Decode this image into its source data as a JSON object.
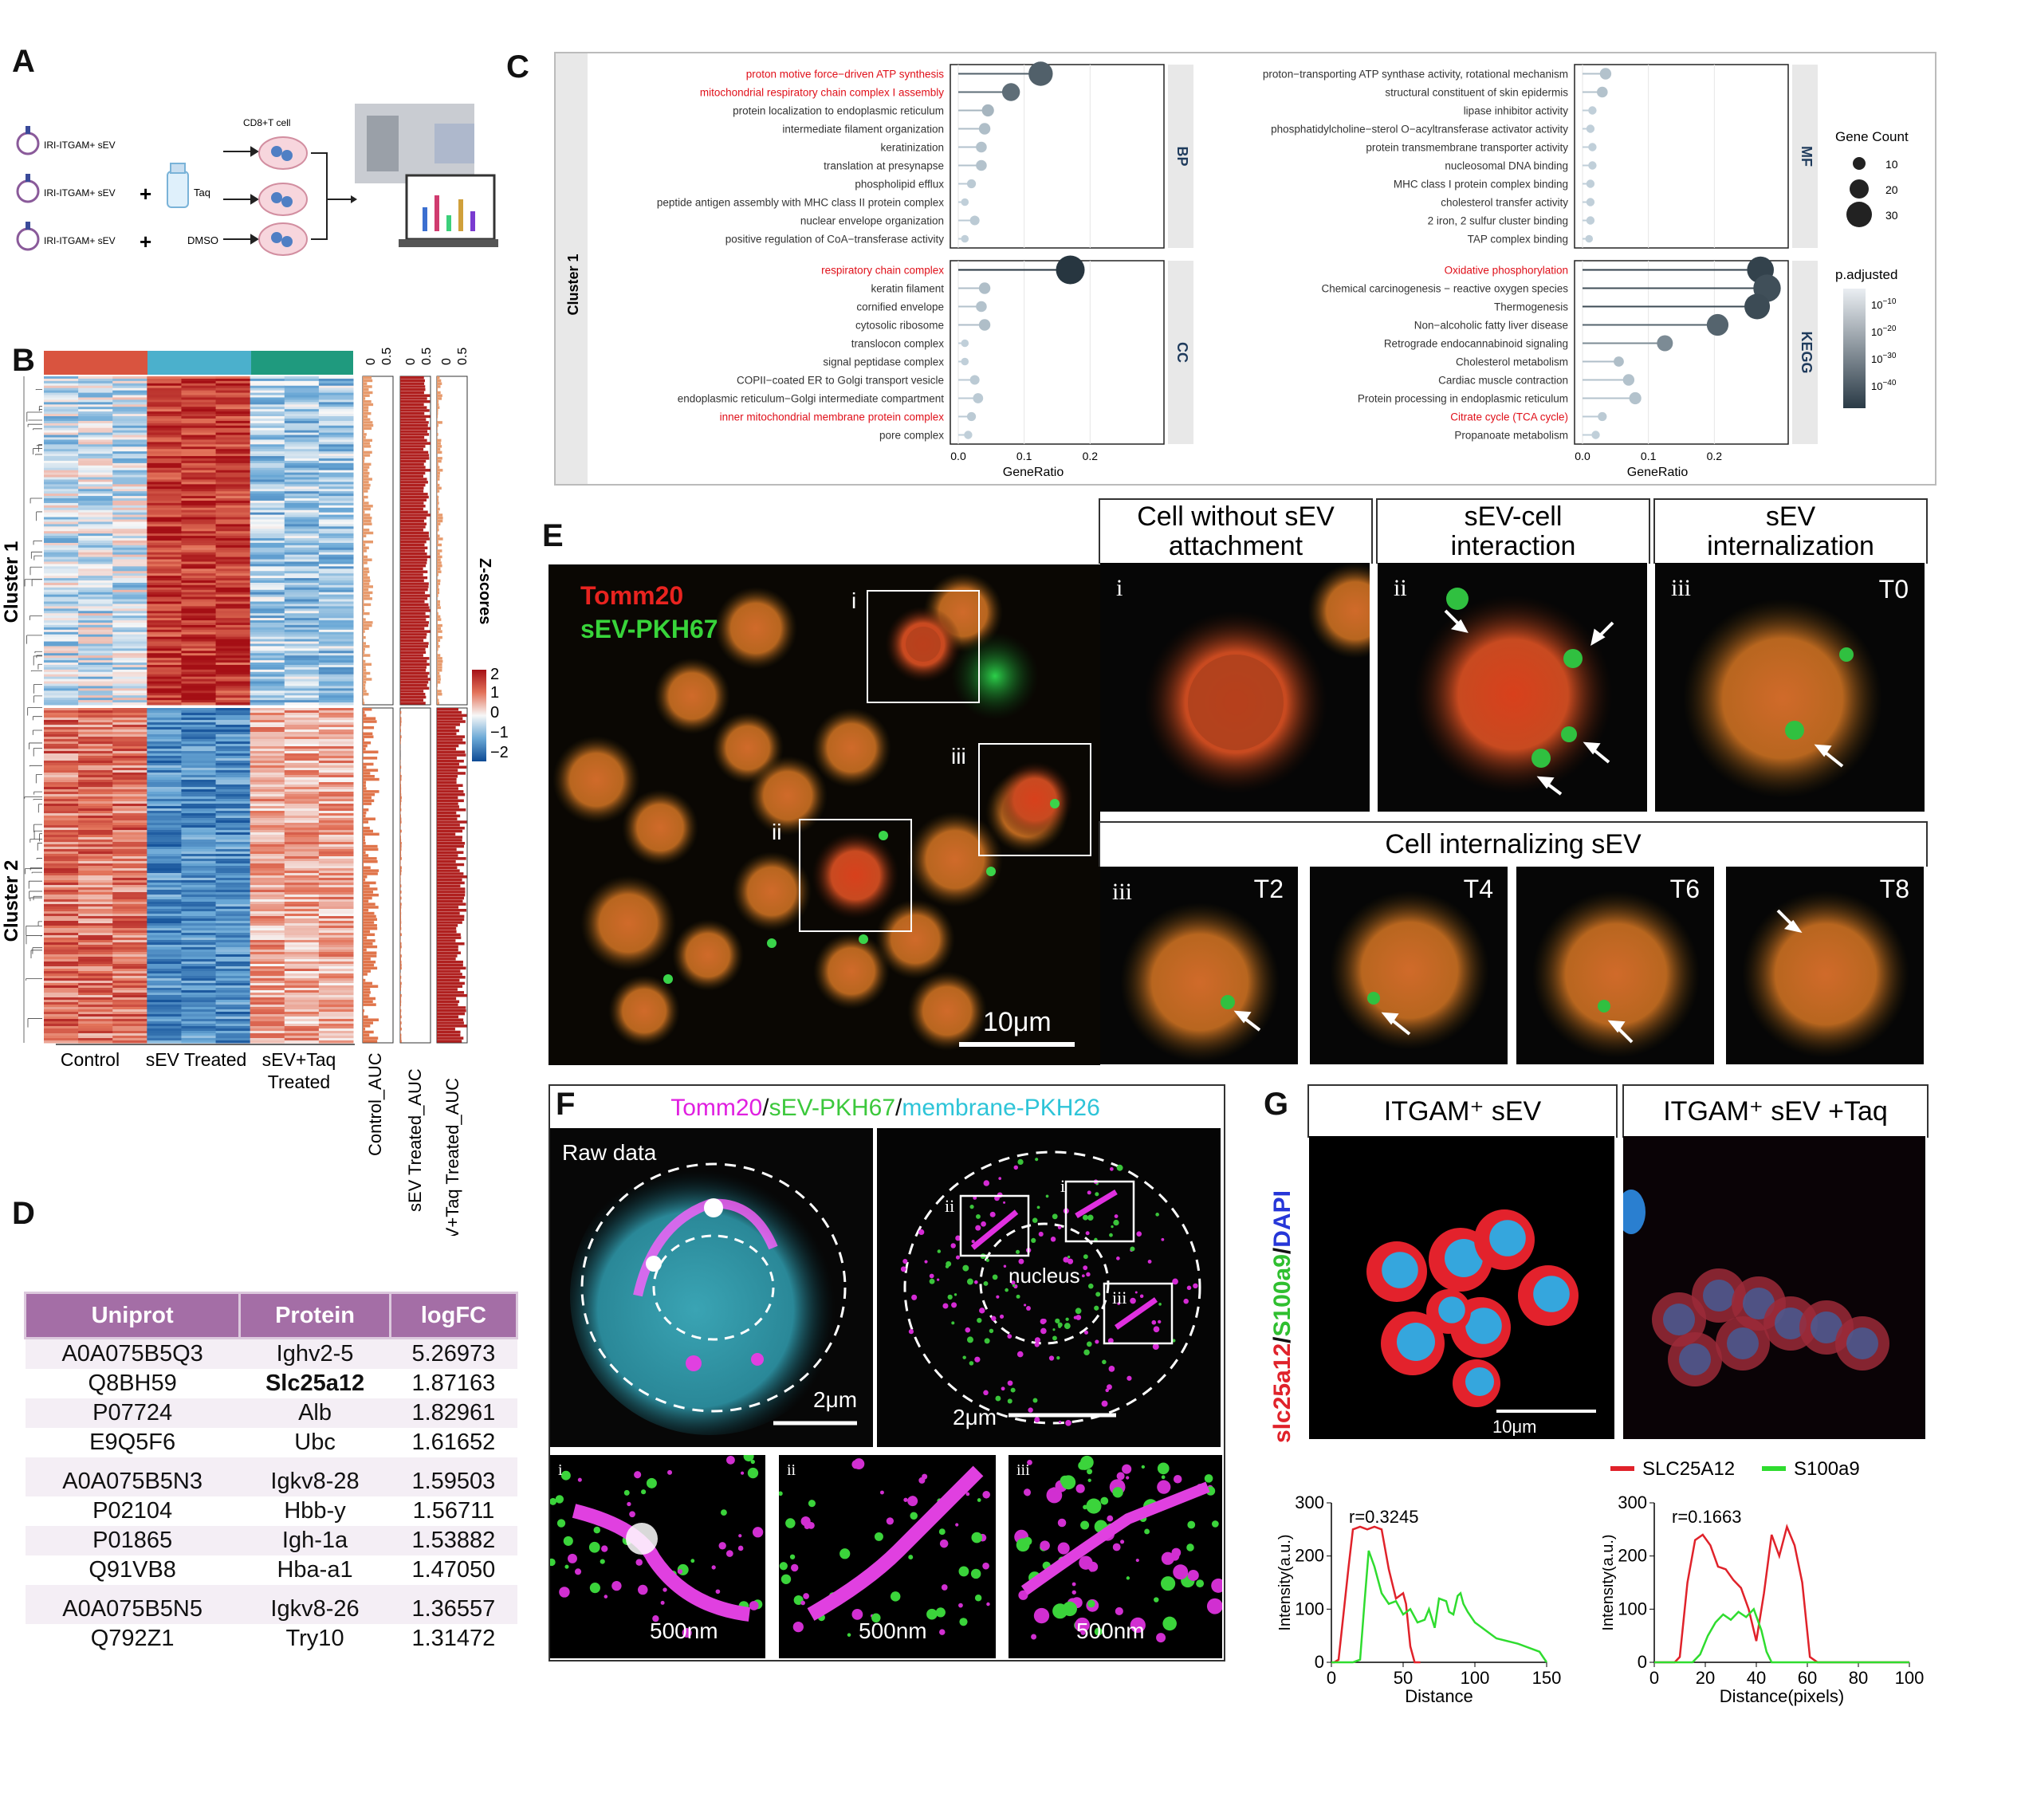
{
  "panels": {
    "a": "A",
    "b": "B",
    "c": "C",
    "d": "D",
    "e": "E",
    "f": "F",
    "g": "G"
  },
  "panel_a": {
    "header": "CD8+T cell",
    "rows": [
      {
        "label": "IRI-ITGAM+ sEV",
        "add": "",
        "agent": ""
      },
      {
        "label": "IRI-ITGAM+ sEV",
        "add": "+",
        "agent": "Taq"
      },
      {
        "label": "IRI-ITGAM+ sEV",
        "add": "+",
        "agent": "DMSO"
      }
    ]
  },
  "panel_b": {
    "clusters": [
      "Cluster 1",
      "Cluster 2"
    ],
    "groups": [
      "Control",
      "sEV Treated",
      "sEV+Taq\nTreated"
    ],
    "group_colors": [
      "#d9543f",
      "#4bb0cc",
      "#1f9a7e"
    ],
    "auc_tracks": [
      "Control_AUC",
      "sEV Treated_AUC",
      "sEV+Taq Treated_AUC"
    ],
    "auc_tick": [
      "0",
      "0.5"
    ],
    "legend_title": "Z-scores",
    "legend_ticks": [
      "2",
      "1",
      "0",
      "−1",
      "−2"
    ]
  },
  "panel_c": {
    "cluster_label": "Cluster 1",
    "x_label": "GeneRatio",
    "x_ticks": [
      "0.0",
      "0.1",
      "0.2"
    ],
    "facets": {
      "BP": {
        "name": "BP",
        "terms": [
          {
            "t": "proton motive force−driven ATP synthesis",
            "r": 0.125,
            "n": 28,
            "p": 28,
            "red": true
          },
          {
            "t": "mitochondrial respiratory chain complex I assembly",
            "r": 0.08,
            "n": 18,
            "p": 25,
            "red": true
          },
          {
            "t": "protein localization to endoplasmic reticulum",
            "r": 0.045,
            "n": 9,
            "p": 8,
            "red": false
          },
          {
            "t": "intermediate filament organization",
            "r": 0.04,
            "n": 8,
            "p": 6,
            "red": false
          },
          {
            "t": "keratinization",
            "r": 0.035,
            "n": 7,
            "p": 5,
            "red": false
          },
          {
            "t": "translation at presynapse",
            "r": 0.035,
            "n": 7,
            "p": 5,
            "red": false
          },
          {
            "t": "phospholipid efflux",
            "r": 0.02,
            "n": 4,
            "p": 3,
            "red": false
          },
          {
            "t": "peptide antigen assembly with MHC class II protein complex",
            "r": 0.01,
            "n": 2,
            "p": 2,
            "red": false
          },
          {
            "t": "nuclear envelope organization",
            "r": 0.025,
            "n": 5,
            "p": 3,
            "red": false
          },
          {
            "t": "positive regulation of CoA−transferase activity",
            "r": 0.01,
            "n": 2,
            "p": 2,
            "red": false
          }
        ]
      },
      "CC": {
        "name": "CC",
        "terms": [
          {
            "t": "respiratory chain complex",
            "r": 0.17,
            "n": 35,
            "p": 38,
            "red": true
          },
          {
            "t": "keratin filament",
            "r": 0.04,
            "n": 8,
            "p": 6,
            "red": false
          },
          {
            "t": "cornified envelope",
            "r": 0.035,
            "n": 7,
            "p": 5,
            "red": false
          },
          {
            "t": "cytosolic ribosome",
            "r": 0.04,
            "n": 8,
            "p": 6,
            "red": false
          },
          {
            "t": "translocon complex",
            "r": 0.01,
            "n": 2,
            "p": 2,
            "red": false
          },
          {
            "t": "signal peptidase complex",
            "r": 0.01,
            "n": 2,
            "p": 2,
            "red": false
          },
          {
            "t": "COPII−coated ER to Golgi transport vesicle",
            "r": 0.025,
            "n": 5,
            "p": 3,
            "red": false
          },
          {
            "t": "endoplasmic reticulum−Golgi intermediate compartment",
            "r": 0.03,
            "n": 6,
            "p": 3,
            "red": false
          },
          {
            "t": "inner mitochondrial membrane protein complex",
            "r": 0.02,
            "n": 4,
            "p": 3,
            "red": true
          },
          {
            "t": "pore complex",
            "r": 0.015,
            "n": 3,
            "p": 2,
            "red": false
          }
        ]
      },
      "MF": {
        "name": "MF",
        "terms": [
          {
            "t": "proton−transporting ATP synthase activity, rotational mechanism",
            "r": 0.035,
            "n": 8,
            "p": 5,
            "red": false
          },
          {
            "t": "structural constituent of skin epidermis",
            "r": 0.03,
            "n": 7,
            "p": 5,
            "red": false
          },
          {
            "t": "lipase inhibitor activity",
            "r": 0.015,
            "n": 3,
            "p": 2,
            "red": false
          },
          {
            "t": "phosphatidylcholine−sterol O−acyltransferase activator activity",
            "r": 0.012,
            "n": 3,
            "p": 2,
            "red": false
          },
          {
            "t": "protein transmembrane transporter activity",
            "r": 0.015,
            "n": 3,
            "p": 2,
            "red": false
          },
          {
            "t": "nucleosomal DNA binding",
            "r": 0.015,
            "n": 3,
            "p": 2,
            "red": false
          },
          {
            "t": "MHC class I protein complex binding",
            "r": 0.012,
            "n": 3,
            "p": 2,
            "red": false
          },
          {
            "t": "cholesterol transfer activity",
            "r": 0.012,
            "n": 3,
            "p": 2,
            "red": false
          },
          {
            "t": "2 iron, 2 sulfur cluster binding",
            "r": 0.012,
            "n": 3,
            "p": 2,
            "red": false
          },
          {
            "t": "TAP complex binding",
            "r": 0.01,
            "n": 2,
            "p": 2,
            "red": false
          }
        ]
      },
      "KEGG": {
        "name": "KEGG",
        "terms": [
          {
            "t": "Oxidative phosphorylation",
            "r": 0.27,
            "n": 32,
            "p": 35,
            "red": true
          },
          {
            "t": "Chemical carcinogenesis − reactive oxygen species",
            "r": 0.28,
            "n": 33,
            "p": 32,
            "red": false
          },
          {
            "t": "Thermogenesis",
            "r": 0.265,
            "n": 30,
            "p": 33,
            "red": false
          },
          {
            "t": "Non−alcoholic fatty liver disease",
            "r": 0.205,
            "n": 24,
            "p": 27,
            "red": false
          },
          {
            "t": "Retrograde endocannabinoid signaling",
            "r": 0.125,
            "n": 15,
            "p": 18,
            "red": false
          },
          {
            "t": "Cholesterol metabolism",
            "r": 0.055,
            "n": 6,
            "p": 6,
            "red": false
          },
          {
            "t": "Cardiac muscle contraction",
            "r": 0.07,
            "n": 8,
            "p": 5,
            "red": false
          },
          {
            "t": "Protein processing in endoplasmic reticulum",
            "r": 0.08,
            "n": 9,
            "p": 5,
            "red": false
          },
          {
            "t": "Citrate cycle (TCA cycle)",
            "r": 0.03,
            "n": 4,
            "p": 3,
            "red": true
          },
          {
            "t": "Propanoate metabolism",
            "r": 0.02,
            "n": 3,
            "p": 2,
            "red": false
          }
        ]
      }
    },
    "legend": {
      "count_title": "Gene Count",
      "counts": [
        "10",
        "20",
        "30"
      ],
      "padj_title": "p.adjusted",
      "padj_base": "10",
      "padj_exps": [
        "−10",
        "−20",
        "−30",
        "−40"
      ]
    }
  },
  "panel_d": {
    "headers": [
      "Uniprot",
      "Protein",
      "logFC"
    ],
    "rows": [
      [
        "A0A075B5Q3",
        "Ighv2-5",
        "5.26973"
      ],
      [
        "Q8BH59",
        "Slc25a12",
        "1.87163"
      ],
      [
        "P07724",
        "Alb",
        "1.82961"
      ],
      [
        "E9Q5F6",
        "Ubc",
        "1.61652"
      ],
      [
        "A0A075B5N3",
        "Igkv8-28",
        "1.59503"
      ],
      [
        "P02104",
        "Hbb-y",
        "1.56711"
      ],
      [
        "P01865",
        "Igh-1a",
        "1.53882"
      ],
      [
        "Q91VB8",
        "Hba-a1",
        "1.47050"
      ],
      [
        "A0A075B5N5",
        "Igkv8-26",
        "1.36557"
      ],
      [
        "Q792Z1",
        "Try10",
        "1.31472"
      ]
    ]
  },
  "panel_e": {
    "legend_red": "Tomm20",
    "legend_green": "sEV-PKH67",
    "scale": "10μm",
    "boxes": [
      "i",
      "ii",
      "iii"
    ],
    "titles": [
      "Cell without sEV\nattachment",
      "sEV-cell\ninteraction",
      "sEV\ninternalization"
    ],
    "sub_title": "Cell internalizing sEV",
    "time_points": [
      "T0",
      "T2",
      "T4",
      "T6",
      "T8"
    ],
    "romans": [
      "i",
      "ii",
      "iii",
      "iii"
    ]
  },
  "panel_f": {
    "title_parts": [
      "Tomm20",
      "/",
      "sEV-PKH67",
      "/",
      "membrane-PKH26"
    ],
    "title_colors": [
      "#e020e0",
      "#111111",
      "#3cc83c",
      "#111111",
      "#2ec4d8"
    ],
    "raw": "Raw data",
    "nucleus": "nucleus",
    "scale_big": "2μm",
    "scale_small": "500nm",
    "romans": [
      "i",
      "ii",
      "iii"
    ]
  },
  "panel_g": {
    "conditions": [
      "ITGAM⁺ sEV",
      "ITGAM⁺ sEV +Taq"
    ],
    "ylabel_parts": [
      "slc25a12",
      "/",
      "S100a9",
      "/",
      "DAPI"
    ],
    "ylabel_colors": [
      "#e0222a",
      "#111",
      "#2fbf2f",
      "#111",
      "#2636d8"
    ],
    "scale": "10μm",
    "legend": [
      "SLC25A12",
      "S100a9"
    ]
  },
  "chart_data": [
    {
      "type": "line",
      "title": "",
      "annotation": "r=0.3245",
      "xlabel": "Distance",
      "ylabel": "Intensity(a.u.)",
      "xlim": [
        0,
        150
      ],
      "ylim": [
        0,
        300
      ],
      "xticks": [
        0,
        50,
        100,
        150
      ],
      "yticks": [
        0,
        100,
        200,
        300
      ],
      "series": [
        {
          "name": "SLC25A12",
          "color": "#e0222a",
          "x": [
            0,
            2,
            5,
            8,
            12,
            15,
            20,
            25,
            30,
            35,
            40,
            45,
            50,
            52,
            55,
            58,
            62
          ],
          "y": [
            0,
            0,
            5,
            80,
            180,
            250,
            255,
            250,
            255,
            250,
            175,
            120,
            130,
            110,
            30,
            0,
            0
          ]
        },
        {
          "name": "S100a9",
          "color": "#2fdc2f",
          "x": [
            0,
            15,
            20,
            23,
            26,
            30,
            35,
            40,
            45,
            50,
            55,
            60,
            65,
            68,
            72,
            75,
            80,
            82,
            85,
            88,
            90,
            92,
            95,
            100,
            115,
            130,
            145,
            150
          ],
          "y": [
            0,
            0,
            5,
            110,
            210,
            180,
            130,
            110,
            115,
            90,
            100,
            75,
            80,
            100,
            65,
            120,
            115,
            95,
            90,
            125,
            130,
            110,
            95,
            75,
            45,
            35,
            20,
            0
          ]
        }
      ]
    },
    {
      "type": "line",
      "title": "",
      "annotation": "r=0.1663",
      "xlabel": "Distance(pixels)",
      "ylabel": "Intensity(a.u.)",
      "xlim": [
        0,
        100
      ],
      "ylim": [
        0,
        300
      ],
      "xticks": [
        0,
        20,
        40,
        60,
        80,
        100
      ],
      "yticks": [
        0,
        100,
        200,
        300
      ],
      "series": [
        {
          "name": "SLC25A12",
          "color": "#e0222a",
          "x": [
            0,
            8,
            10,
            13,
            16,
            19,
            22,
            25,
            28,
            31,
            34,
            37,
            40,
            43,
            46,
            49,
            52,
            55,
            58,
            61,
            64,
            100
          ],
          "y": [
            0,
            0,
            10,
            150,
            230,
            240,
            220,
            180,
            175,
            155,
            140,
            100,
            40,
            130,
            240,
            200,
            255,
            220,
            150,
            10,
            0,
            0
          ]
        },
        {
          "name": "S100a9",
          "color": "#2fdc2f",
          "x": [
            0,
            15,
            18,
            21,
            24,
            27,
            30,
            33,
            36,
            39,
            42,
            44,
            46,
            100
          ],
          "y": [
            0,
            0,
            15,
            50,
            75,
            90,
            80,
            95,
            85,
            100,
            60,
            20,
            0,
            0
          ]
        }
      ]
    }
  ]
}
